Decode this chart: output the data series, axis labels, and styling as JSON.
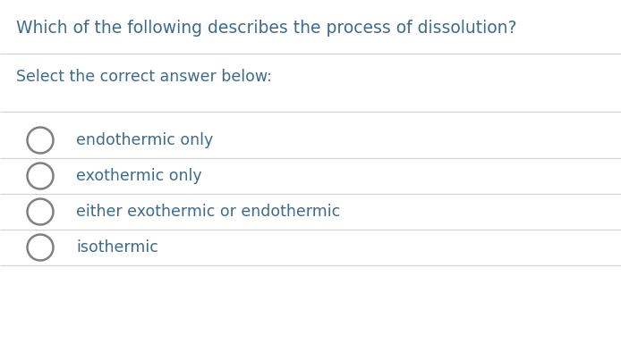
{
  "title": "Which of the following describes the process of dissolution?",
  "subtitle": "Select the correct answer below:",
  "options": [
    "endothermic only",
    "exothermic only",
    "either exothermic or endothermic",
    "isothermic"
  ],
  "title_color": "#3d6b8e",
  "subtitle_color": "#3d6b8e",
  "option_color": "#3d6b8e",
  "background_color": "#ffffff",
  "line_color": "#d0d0d0",
  "circle_edge_color": "#808080",
  "title_fontsize": 13.5,
  "subtitle_fontsize": 12.5,
  "option_fontsize": 12.5,
  "fig_width": 6.94,
  "fig_height": 3.94,
  "dpi": 100
}
